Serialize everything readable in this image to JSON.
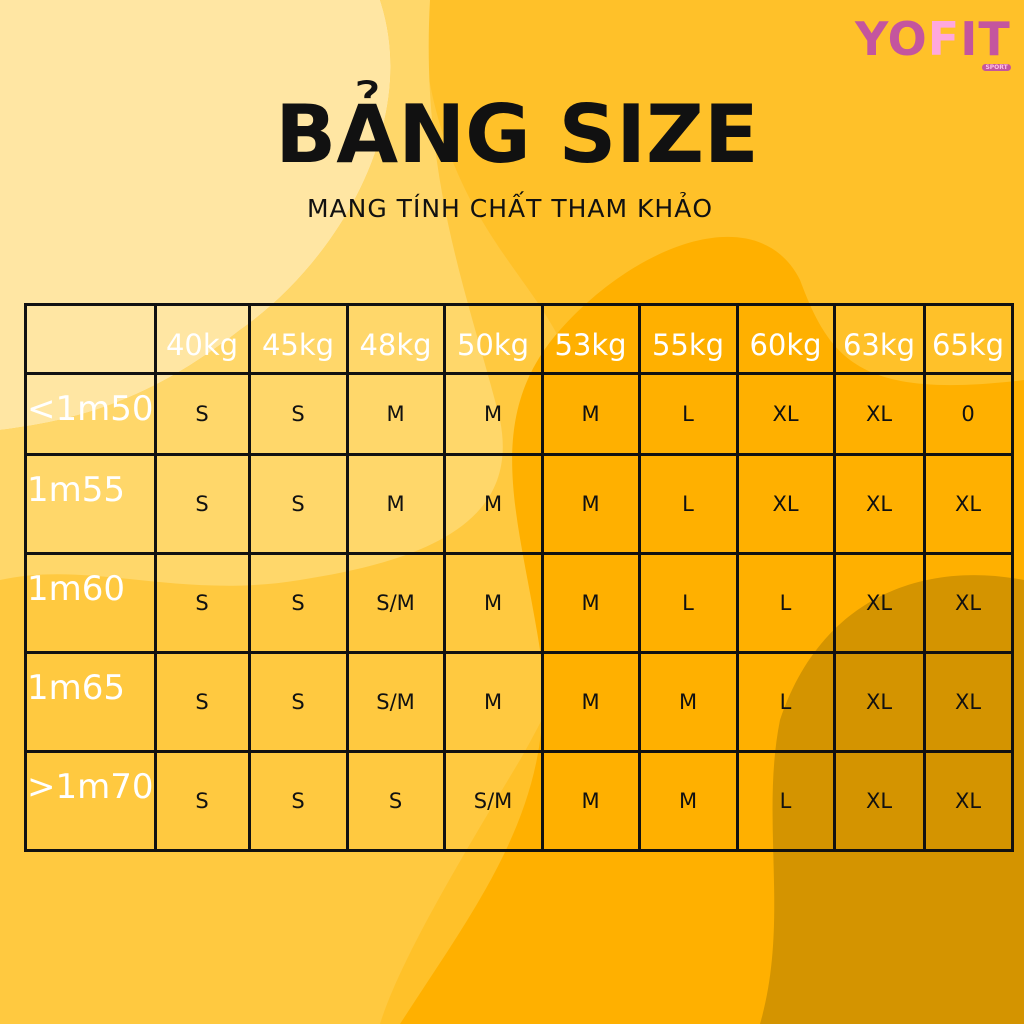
{
  "logo": {
    "text": "YOFIT",
    "tag": "SPORT"
  },
  "title": "BẢNG SIZE",
  "subtitle": "MANG TÍNH CHẤT THAM KHẢO",
  "colors": {
    "background": "#ffc940",
    "dark": "#d49400",
    "light": "#ffe6a3",
    "logo": "#c4559e"
  },
  "table": {
    "columns": [
      "40kg",
      "45kg",
      "48kg",
      "50kg",
      "53kg",
      "55kg",
      "60kg",
      "63kg",
      "65kg"
    ],
    "rows": [
      {
        "label": "<1m50",
        "cells": [
          "S",
          "S",
          "M",
          "M",
          "M",
          "L",
          "XL",
          "XL",
          "0"
        ]
      },
      {
        "label": "1m55",
        "cells": [
          "S",
          "S",
          "M",
          "M",
          "M",
          "L",
          "XL",
          "XL",
          "XL"
        ]
      },
      {
        "label": "1m60",
        "cells": [
          "S",
          "S",
          "S/M",
          "M",
          "M",
          "L",
          "L",
          "XL",
          "XL"
        ]
      },
      {
        "label": "1m65",
        "cells": [
          "S",
          "S",
          "S/M",
          "M",
          "M",
          "M",
          "L",
          "XL",
          "XL"
        ]
      },
      {
        "label": ">1m70",
        "cells": [
          "S",
          "S",
          "S",
          "S/M",
          "M",
          "M",
          "L",
          "XL",
          "XL"
        ]
      }
    ]
  }
}
